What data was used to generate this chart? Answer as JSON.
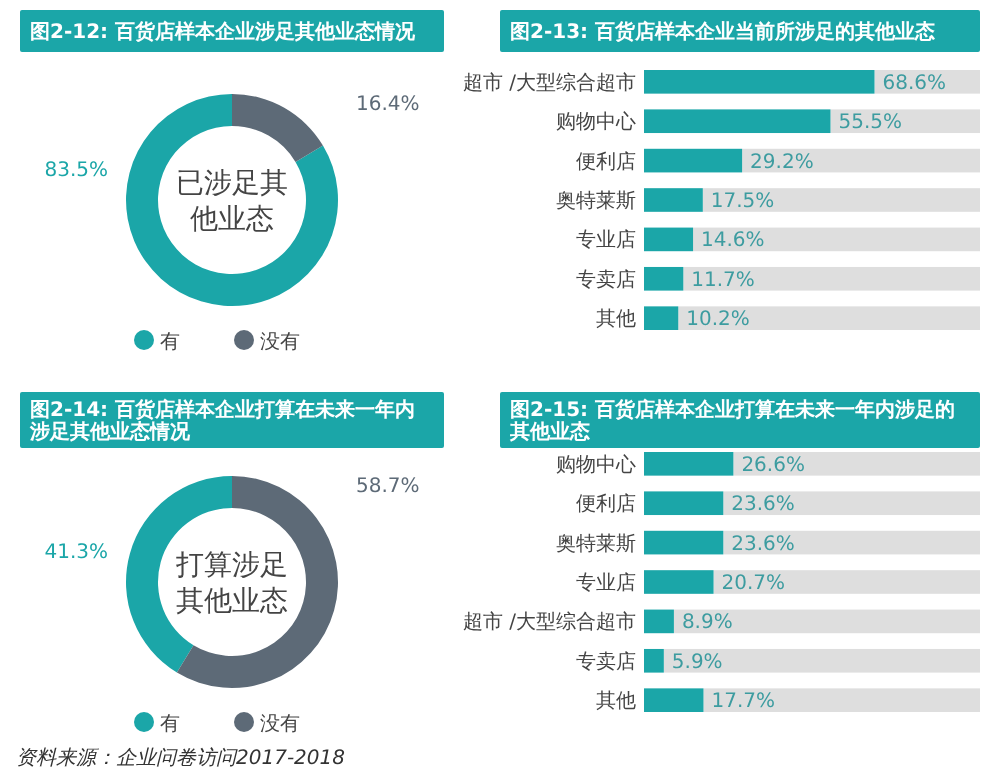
{
  "chart_data": [
    {
      "type": "donut",
      "title": "图2-12: 百货店样本企业涉足其他业态情况",
      "categories": [
        "有",
        "没有"
      ],
      "values": [
        83.5,
        16.4
      ],
      "colors": [
        "#1ba6a8",
        "#5d6a77"
      ],
      "value_labels": [
        "83.5%",
        "16.4%"
      ],
      "legend": "bottom",
      "annotations": [
        "已涉足其他业态"
      ]
    },
    {
      "type": "bar",
      "orientation": "horizontal",
      "title": "图2-13: 百货店样本企业当前所涉足的其他业态",
      "categories": [
        "超市 /大型综合超市",
        "购物中心",
        "便利店",
        "奥特莱斯",
        "专业店",
        "专卖店",
        "其他"
      ],
      "values": [
        68.6,
        55.5,
        29.2,
        17.5,
        14.6,
        11.7,
        10.2
      ],
      "color": "#1ba6a8",
      "xlim": [
        0,
        100
      ],
      "tick_labels": "y",
      "value_labels": [
        "68.6%",
        "55.5%",
        "29.2%",
        "17.5%",
        "14.6%",
        "11.7%",
        "10.2%"
      ]
    },
    {
      "type": "donut",
      "title": "图2-14: 百货店样本企业打算在未来一年内涉足其他业态情况",
      "categories": [
        "有",
        "没有"
      ],
      "values": [
        41.3,
        58.7
      ],
      "colors": [
        "#1ba6a8",
        "#5d6a77"
      ],
      "value_labels": [
        "41.3%",
        "58.7%"
      ],
      "legend": "bottom",
      "annotations": [
        "打算涉足其他业态",
        "资料来源：企业问卷访问2017-2018"
      ]
    },
    {
      "type": "bar",
      "orientation": "horizontal",
      "title": "图2-15: 百货店样本企业打算在未来一年内涉足的其他业态",
      "categories": [
        "购物中心",
        "便利店",
        "奥特莱斯",
        "专业店",
        "超市 /大型综合超市",
        "专卖店",
        "其他"
      ],
      "values": [
        26.6,
        23.6,
        23.6,
        20.7,
        8.9,
        5.9,
        17.7
      ],
      "color": "#1ba6a8",
      "xlim": [
        0,
        100
      ],
      "tick_labels": "y",
      "value_labels": [
        "26.6%",
        "23.6%",
        "23.6%",
        "20.7%",
        "8.9%",
        "5.9%",
        "17.7%"
      ]
    }
  ]
}
